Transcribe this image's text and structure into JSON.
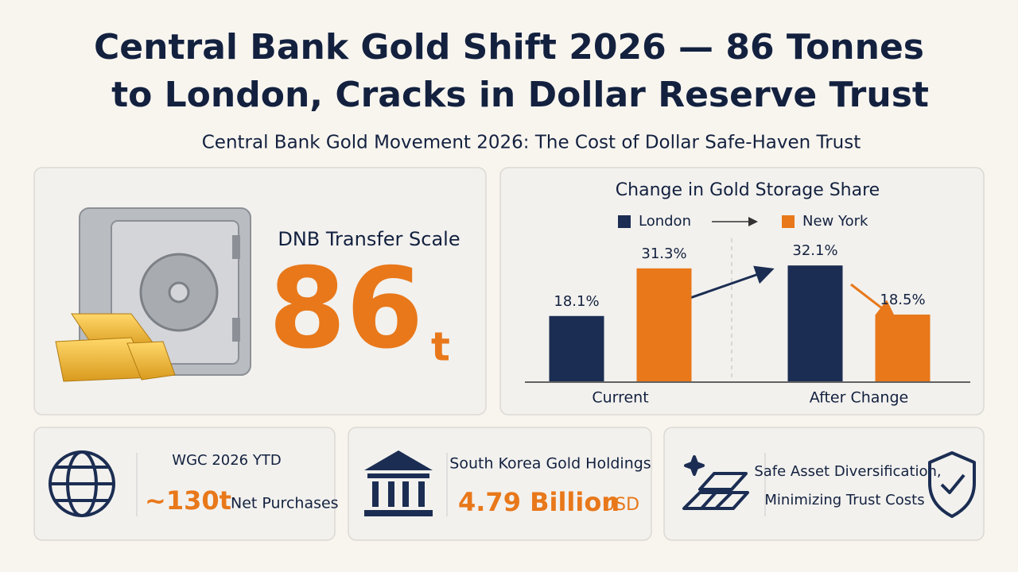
{
  "header": {
    "title_lines": [
      "Central Bank Gold Shift 2026 — 86 Tonnes",
      "to London, Cracks in Dollar Reserve Trust"
    ],
    "subtitle": "Central Bank Gold Movement 2026: The Cost of Dollar Safe-Haven Trust"
  },
  "hero": {
    "label": "DNB Transfer Scale",
    "value": 86,
    "unit": "t"
  },
  "chart_data": {
    "type": "bar",
    "title": "Change in Gold Storage Share",
    "categories": [
      "Current",
      "After Change"
    ],
    "series": [
      {
        "name": "London",
        "color": "#1b2d52",
        "values": [
          18.1,
          32.1
        ],
        "value_labels": [
          "18.1%",
          "32.1%"
        ]
      },
      {
        "name": "New York",
        "color": "#e8781a",
        "values": [
          31.3,
          18.5
        ],
        "value_labels": [
          "31.3%",
          "18.5%"
        ]
      }
    ],
    "ylim": [
      0,
      35
    ]
  },
  "cards": [
    {
      "label": "WGC 2026 YTD",
      "value": "~130t",
      "unit": "Net Purchases"
    },
    {
      "label": "South Korea Gold Holdings",
      "value": "4.79 Billion",
      "unit": "USD"
    },
    {
      "lines": [
        "Safe Asset Diversification,",
        "Minimizing Trust Costs"
      ]
    }
  ]
}
